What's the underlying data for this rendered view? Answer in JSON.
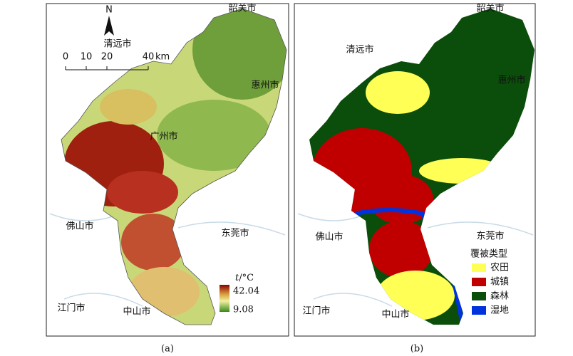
{
  "panel_a": {
    "caption": "(a)",
    "north": "N",
    "scale_bar": {
      "ticks": [
        0,
        10,
        20,
        40
      ],
      "unit": "km"
    },
    "cities": [
      "韶关市",
      "清远市",
      "惠州市",
      "广州市",
      "佛山市",
      "东莞市",
      "江门市",
      "中山市"
    ],
    "legend": {
      "variable": "t",
      "unit": "/°C",
      "max": "42.04",
      "min": "9.08"
    }
  },
  "panel_b": {
    "caption": "(b)",
    "cities": [
      "韶关市",
      "清远市",
      "惠州市",
      "东莞市",
      "佛山市",
      "江门市",
      "中山市"
    ],
    "legend": {
      "title": "覆被类型",
      "items": [
        {
          "label": "农田",
          "color": "#ffff55"
        },
        {
          "label": "城镇",
          "color": "#c00000"
        },
        {
          "label": "森林",
          "color": "#0b4d0b"
        },
        {
          "label": "湿地",
          "color": "#0033dd"
        }
      ]
    }
  }
}
